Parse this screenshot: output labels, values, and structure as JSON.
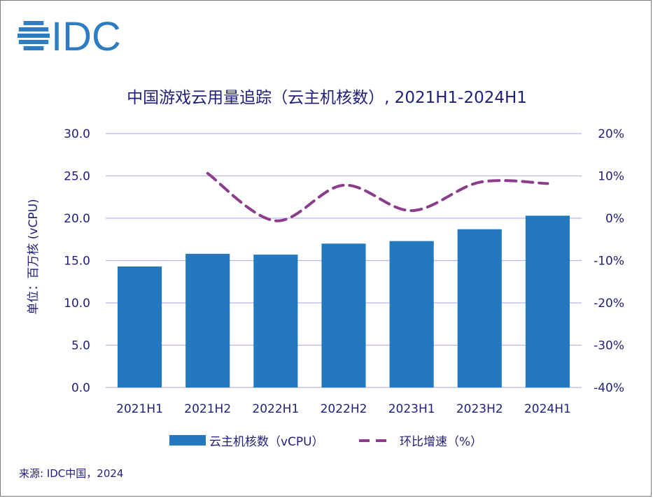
{
  "logo": {
    "text": "IDC"
  },
  "source": "来源: IDC中国，2024",
  "colors": {
    "bar": "#2479BE",
    "line": "#8B3D8B",
    "text": "#1F1F7A",
    "grid": "#B4B8E6",
    "logo": "#2E7DC3"
  },
  "chart_data": {
    "type": "bar",
    "title": "中国游戏云用量追踪（云主机核数）, 2021H1-2024H1",
    "ylabel": "单位：百万核 (vCPU)",
    "xlabel": "",
    "categories": [
      "2021H1",
      "2021H2",
      "2022H1",
      "2022H2",
      "2023H1",
      "2023H2",
      "2024H1"
    ],
    "ylim": [
      0,
      30
    ],
    "yticks": [
      "0.0",
      "5.0",
      "10.0",
      "15.0",
      "20.0",
      "25.0",
      "30.0"
    ],
    "y2lim": [
      -40,
      20
    ],
    "y2ticks": [
      "-40%",
      "-30%",
      "-20%",
      "-10%",
      "0%",
      "10%",
      "20%"
    ],
    "grid": true,
    "legend_position": "bottom",
    "series": [
      {
        "name": "云主机核数（vCPU）",
        "type": "bar",
        "axis": "left",
        "values": [
          14.3,
          15.8,
          15.7,
          17.0,
          17.3,
          18.7,
          20.3
        ]
      },
      {
        "name": "环比增速（%）",
        "type": "line",
        "axis": "right",
        "style": "dashed",
        "values": [
          null,
          10.6,
          -0.6,
          7.8,
          1.8,
          8.5,
          8.2
        ]
      }
    ]
  }
}
